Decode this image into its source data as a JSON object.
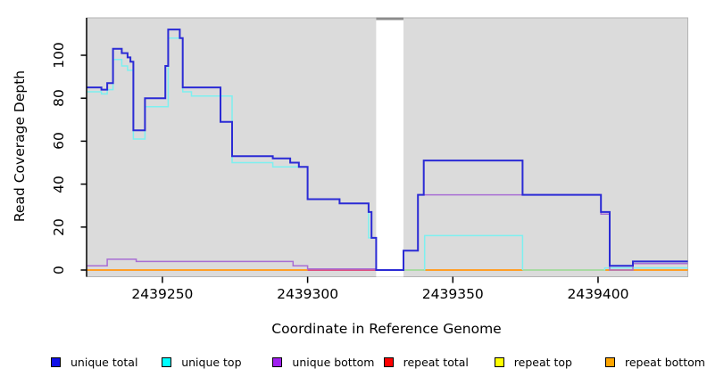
{
  "chart_data": {
    "type": "line",
    "step": "post",
    "title": "",
    "xlabel": "Coordinate in Reference Genome",
    "ylabel": "Read Coverage Depth",
    "xlim": [
      2439223.9,
      2439430.9
    ],
    "ylim": [
      0,
      117
    ],
    "x_ticks": [
      2439250,
      2439300,
      2439350,
      2439400
    ],
    "y_ticks": [
      0,
      20,
      40,
      60,
      80,
      100
    ],
    "grid": false,
    "plot_bg": "#DBDBDB",
    "border_color": "#B3B3B3",
    "axis_color": "#000000",
    "legend_position": "bottom",
    "gap_region": {
      "x_start": 2439323.6,
      "x_end": 2439333,
      "fill": "#FFFFFF",
      "cap_color": "#8C8C8C"
    },
    "draw_order": [
      "repeat top",
      "repeat bottom",
      "repeat total",
      "unique top",
      "__gap__",
      "unique bottom",
      "unique total"
    ],
    "series": [
      {
        "name": "unique total",
        "legend_color": "#1010E8",
        "line_color": "#2B2BD5",
        "line_width": 2,
        "segments": [
          [
            [
              2439224,
              85
            ],
            [
              2439229,
              84
            ],
            [
              2439231,
              87
            ],
            [
              2439233,
              103
            ],
            [
              2439236,
              101
            ],
            [
              2439238,
              99
            ],
            [
              2439239,
              97
            ],
            [
              2439240,
              65
            ],
            [
              2439244,
              80
            ],
            [
              2439251,
              95
            ],
            [
              2439252,
              112
            ],
            [
              2439256,
              108
            ],
            [
              2439257,
              85
            ],
            [
              2439270,
              69
            ],
            [
              2439274,
              53
            ],
            [
              2439288,
              52
            ],
            [
              2439294,
              50
            ],
            [
              2439297,
              48
            ],
            [
              2439300,
              33
            ],
            [
              2439311,
              31
            ],
            [
              2439321,
              27
            ],
            [
              2439322,
              15
            ],
            [
              2439323.6,
              0
            ],
            [
              2439333,
              9
            ],
            [
              2439338,
              35
            ],
            [
              2439340,
              51
            ],
            [
              2439374,
              35
            ],
            [
              2439401,
              27
            ],
            [
              2439404,
              2
            ],
            [
              2439412,
              4
            ],
            [
              2439430.9,
              4
            ]
          ]
        ]
      },
      {
        "name": "unique top",
        "legend_color": "#00FFFF",
        "line_color": "#7DF0F0",
        "line_width": 1.5,
        "segments": [
          [
            [
              2439224,
              83
            ],
            [
              2439229,
              82
            ],
            [
              2439231,
              84
            ],
            [
              2439233,
              98
            ],
            [
              2439236,
              95
            ],
            [
              2439238,
              93
            ],
            [
              2439240,
              61
            ],
            [
              2439244,
              76
            ],
            [
              2439252,
              108
            ],
            [
              2439257,
              83
            ],
            [
              2439260,
              81
            ],
            [
              2439274,
              50
            ],
            [
              2439288,
              48
            ],
            [
              2439300,
              33
            ],
            [
              2439311,
              31
            ],
            [
              2439321,
              15
            ],
            [
              2439323.6,
              0
            ]
          ],
          [
            [
              2439340,
              0
            ],
            [
              2439340.3,
              16
            ],
            [
              2439374,
              0
            ]
          ],
          [
            [
              2439402,
              0
            ],
            [
              2439402.3,
              1
            ],
            [
              2439430.9,
              1
            ]
          ]
        ]
      },
      {
        "name": "unique bottom",
        "legend_color": "#A020F0",
        "line_color": "#A86ED4",
        "line_width": 1.5,
        "segments": [
          [
            [
              2439224,
              2
            ],
            [
              2439231,
              5
            ],
            [
              2439241,
              4
            ],
            [
              2439295,
              2
            ],
            [
              2439300,
              0.5
            ],
            [
              2439323.6,
              0
            ],
            [
              2439333,
              9
            ],
            [
              2439338,
              35
            ],
            [
              2439401,
              26
            ],
            [
              2439404,
              0
            ],
            [
              2439412,
              3
            ],
            [
              2439430.9,
              3
            ]
          ]
        ]
      },
      {
        "name": "repeat total",
        "legend_color": "#FF0000",
        "line_color": "#DD5080",
        "line_width": 2,
        "segments": [
          [
            [
              2439300,
              0
            ],
            [
              2439323.6,
              0
            ]
          ]
        ]
      },
      {
        "name": "repeat top",
        "legend_color": "#FFFF00",
        "line_color": "#97DA8F",
        "line_width": 1.5,
        "segments": [
          [
            [
              2439224,
              0
            ],
            [
              2439430.9,
              0
            ]
          ]
        ]
      },
      {
        "name": "repeat bottom",
        "legend_color": "#FFA500",
        "line_color": "#FF9E26",
        "line_width": 2,
        "segments": [
          [
            [
              2439224,
              0
            ],
            [
              2439300,
              0
            ]
          ],
          [
            [
              2439340,
              0
            ],
            [
              2439374,
              0
            ]
          ],
          [
            [
              2439402,
              0
            ],
            [
              2439430.9,
              0
            ]
          ]
        ]
      }
    ]
  }
}
